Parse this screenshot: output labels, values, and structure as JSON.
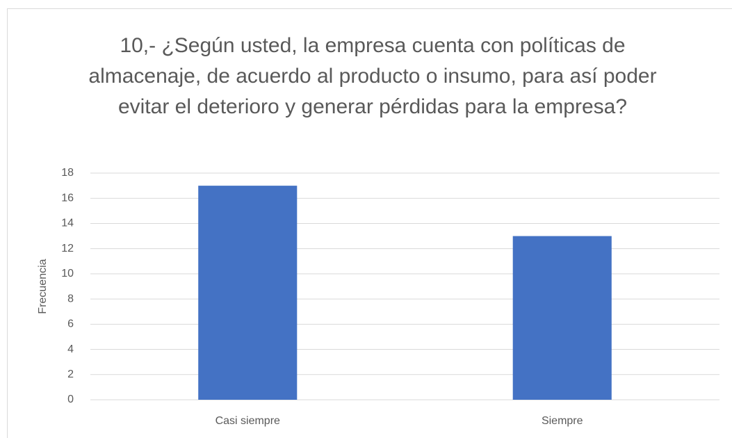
{
  "chart_data": {
    "type": "bar",
    "title": "10,- ¿Según usted, la empresa cuenta con políticas de almacenaje, de acuerdo al producto o insumo, para así poder evitar el deterioro y generar pérdidas para la empresa?",
    "y_label": "Frecuencia",
    "categories": [
      "Casi siempre",
      "Siempre"
    ],
    "values": [
      17,
      13
    ],
    "color": "#4472c4",
    "ylim": [
      0,
      18
    ],
    "yticks": [
      0,
      2,
      4,
      6,
      8,
      10,
      12,
      14,
      16,
      18
    ],
    "grid": true
  }
}
